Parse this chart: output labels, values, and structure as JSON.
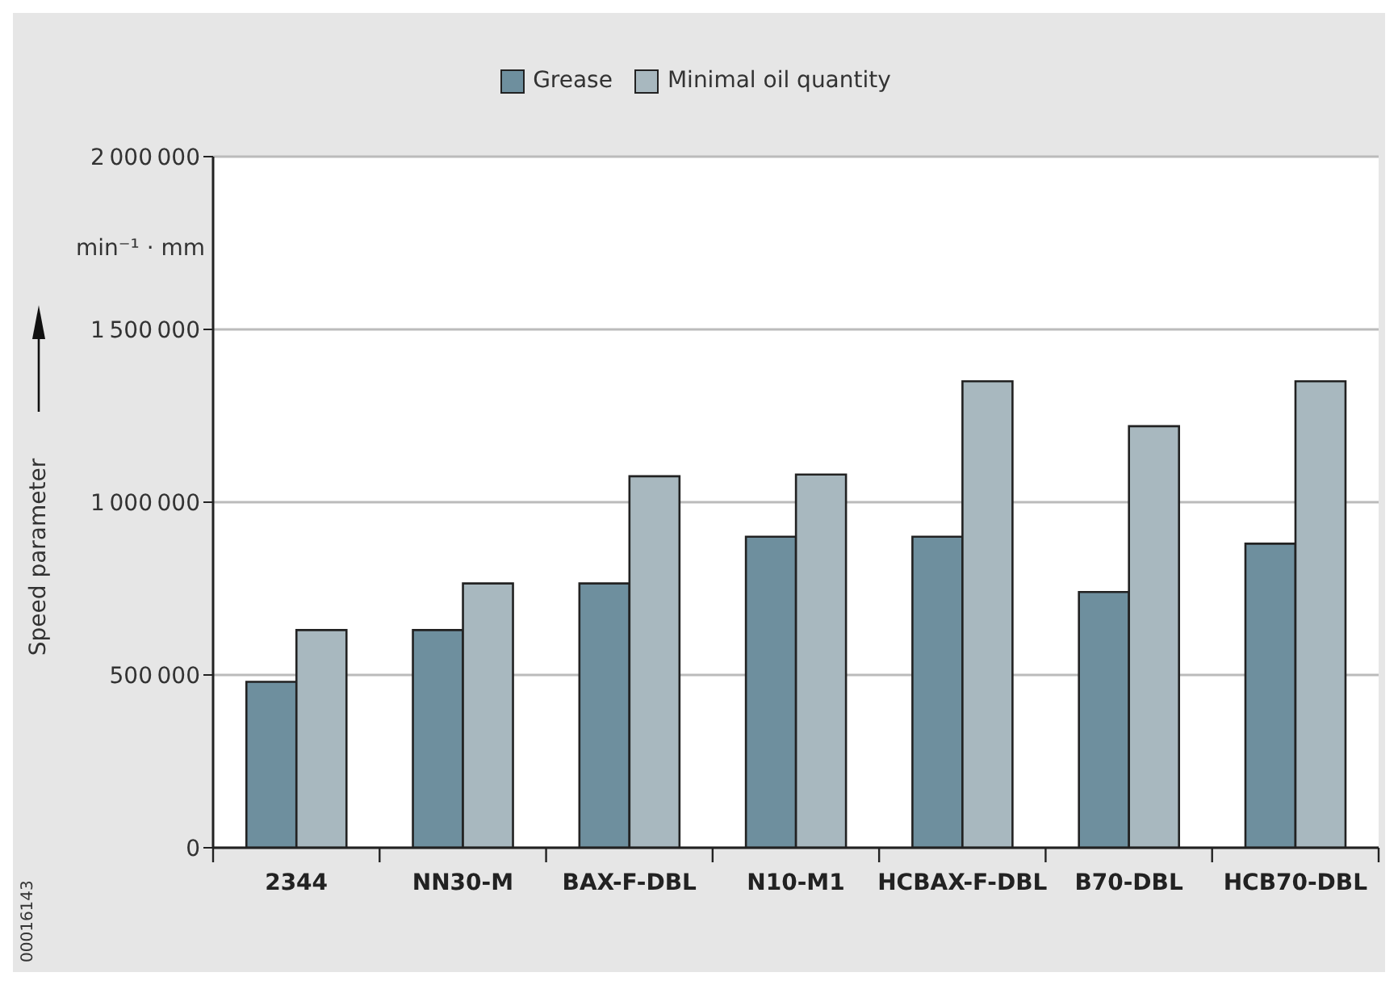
{
  "chart_data": {
    "type": "bar",
    "ylabel": "Speed parameter",
    "categories": [
      "2344",
      "NN30-M",
      "BAX-F-DBL",
      "N10-M1",
      "HCBAX-F-DBL",
      "B70-DBL",
      "HCB70-DBL"
    ],
    "series": [
      {
        "name": "Grease",
        "color": "#6e8f9e",
        "values": [
          480000,
          630000,
          765000,
          900000,
          900000,
          740000,
          880000
        ]
      },
      {
        "name": "Minimal oil quantity",
        "color": "#a8b8bf",
        "values": [
          630000,
          765000,
          1075000,
          1080000,
          1350000,
          1220000,
          1350000
        ]
      }
    ],
    "ylim": [
      0,
      2000000
    ],
    "yticks": [
      0,
      500000,
      1000000,
      1500000,
      2000000
    ],
    "grid": "y",
    "legend": "top",
    "annotations": [
      "min⁻¹ · mm",
      "00016143"
    ]
  }
}
